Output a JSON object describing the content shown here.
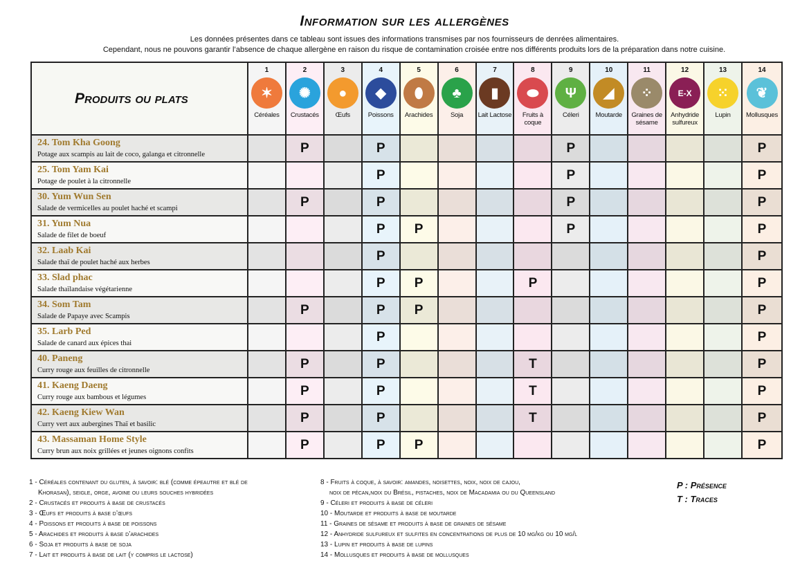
{
  "title": "Information sur les allergènes",
  "intro": [
    "Les données présentes dans ce tableau sont issues des informations transmises par nos fournisseurs de denrées alimentaires.",
    "Cependant, nous ne pouvons garantir l’absence de chaque allergène en raison du risque de contamination croisée entre nos différents produits lors de la préparation dans notre cuisine."
  ],
  "table": {
    "header_label": "Produits ou plats",
    "allergens": [
      {
        "num": "1",
        "label": "Céréales",
        "icon": "wheat-icon",
        "color": "#ef7a3c",
        "tint": "#f5f5f5",
        "glyph": "✶"
      },
      {
        "num": "2",
        "label": "Crustacés",
        "icon": "crab-icon",
        "color": "#2aa3dc",
        "tint": "#fdeef5",
        "glyph": "✺"
      },
      {
        "num": "3",
        "label": "Œufs",
        "icon": "eggs-icon",
        "color": "#f39a2e",
        "tint": "#ececec",
        "glyph": "●"
      },
      {
        "num": "4",
        "label": "Poissons",
        "icon": "fish-icon",
        "color": "#2c4c9c",
        "tint": "#e8f4fb",
        "glyph": "◆"
      },
      {
        "num": "5",
        "label": "Arachides",
        "icon": "peanut-icon",
        "color": "#c07a45",
        "tint": "#fdfbe8",
        "glyph": "⬮"
      },
      {
        "num": "6",
        "label": "Soja",
        "icon": "soy-icon",
        "color": "#2aa24a",
        "tint": "#fcefe9",
        "glyph": "♣"
      },
      {
        "num": "7",
        "label": "Lait Lactose",
        "icon": "milk-jug-icon",
        "color": "#6b3a22",
        "tint": "#e8f2f8",
        "glyph": "▮"
      },
      {
        "num": "8",
        "label": "Fruits à coque",
        "icon": "nut-icon",
        "color": "#d94a4f",
        "tint": "#fbe8f0",
        "glyph": "⬬"
      },
      {
        "num": "9",
        "label": "Céleri",
        "icon": "celery-icon",
        "color": "#5fb043",
        "tint": "#ececec",
        "glyph": "Ψ"
      },
      {
        "num": "10",
        "label": "Moutarde",
        "icon": "mustard-icon",
        "color": "#c28b25",
        "tint": "#e5f1f9",
        "glyph": "◢"
      },
      {
        "num": "11",
        "label": "Graines de sésame",
        "icon": "sesame-icon",
        "color": "#9a8a6a",
        "tint": "#f8e8f0",
        "glyph": "⁘"
      },
      {
        "num": "12",
        "label": "Anhydride sulfureux",
        "icon": "sulphite-icon",
        "color": "#8a1f55",
        "tint": "#fbf8e6",
        "glyph": "E-X"
      },
      {
        "num": "13",
        "label": "Lupin",
        "icon": "lupin-icon",
        "color": "#f6d22b",
        "tint": "#eef3ea",
        "glyph": "⁙"
      },
      {
        "num": "14",
        "label": "Mollusques",
        "icon": "shell-icon",
        "color": "#5bc1d9",
        "tint": "#fcefe4",
        "glyph": "❦"
      }
    ],
    "rows": [
      {
        "name": "24. Tom Kha Goong",
        "desc": "Potage aux scampis au lait de coco, galanga et citronnelle",
        "marks": {
          "2": "P",
          "4": "P",
          "9": "P",
          "14": "P"
        }
      },
      {
        "name": "25. Tom Yam Kai",
        "desc": "Potage de poulet à la citronnelle",
        "marks": {
          "4": "P",
          "9": "P",
          "14": "P"
        }
      },
      {
        "name": "30. Yum Wun Sen",
        "desc": "Salade de vermicelles au poulet haché et scampi",
        "marks": {
          "2": "P",
          "4": "P",
          "9": "P",
          "14": "P"
        }
      },
      {
        "name": "31. Yum Nua",
        "desc": "Salade de filet de boeuf",
        "marks": {
          "4": "P",
          "5": "P",
          "9": "P",
          "14": "P"
        }
      },
      {
        "name": "32. Laab Kai",
        "desc": "Salade thaï de poulet haché aux herbes",
        "marks": {
          "4": "P",
          "14": "P"
        }
      },
      {
        "name": "33. Slad phac",
        "desc": "Salade thaïlandaise végétarienne",
        "marks": {
          "4": "P",
          "5": "P",
          "8": "P",
          "14": "P"
        }
      },
      {
        "name": "34. Som Tam",
        "desc": "Salade de Papaye avec Scampis",
        "marks": {
          "2": "P",
          "4": "P",
          "5": "P",
          "14": "P"
        }
      },
      {
        "name": "35. Larb Ped",
        "desc": "Salade de canard aux épices thai",
        "marks": {
          "4": "P",
          "14": "P"
        }
      },
      {
        "name": "40. Paneng",
        "desc": "Curry rouge aux feuilles de citronnelle",
        "marks": {
          "2": "P",
          "4": "P",
          "8": "T",
          "14": "P"
        }
      },
      {
        "name": "41. Kaeng Daeng",
        "desc": "Curry rouge aux bambous et légumes",
        "marks": {
          "2": "P",
          "4": "P",
          "8": "T",
          "14": "P"
        }
      },
      {
        "name": "42. Kaeng Kiew Wan",
        "desc": "Curry vert aux aubergines Thaï et basilic",
        "marks": {
          "2": "P",
          "4": "P",
          "8": "T",
          "14": "P"
        }
      },
      {
        "name": "43. Massaman Home Style",
        "desc": "Curry brun aux noix grillées et jeunes oignons confits",
        "marks": {
          "2": "P",
          "4": "P",
          "5": "P",
          "14": "P"
        }
      }
    ]
  },
  "legend_left": [
    "1 - Céréales contenant du gluten, à savoir: blé (comme épeautre et blé de",
    "Khorasan), seigle, orge, avoine ou leurs souches hybridées",
    "2 - Crustacés et produits à base de crustacés",
    "3 - Œufs et produits à base d’œufs",
    "4 - Poissons et produits à base de poissons",
    "5 - Arachides et  produits à base d’arachides",
    "6 - Soja et produits à base de soja",
    "7 - Lait et produits à base de lait (y compris le lactose)"
  ],
  "legend_right": [
    "8 - Fruits à coque, à savoir: amandes, noisettes, noix, noix de cajou,",
    "noix de pécan,noix du Brésil, pistaches, noix de Macadamia ou du Queensland",
    "9 - Céleri et produits à base de céleri",
    "10 - Moutarde et produits à base de moutarde",
    "11 - Graines de sésame et produits à base de graines de sésame",
    "12 - Anhydride sulfureux et sulfites en concentrations de plus de 10 mg/kg ou 10 mg/l",
    "13 - Lupin et produits à base de lupins",
    "14 - Mollusques et produits à base de mollusques"
  ],
  "key": [
    "P : Présence",
    "T : Traces"
  ]
}
